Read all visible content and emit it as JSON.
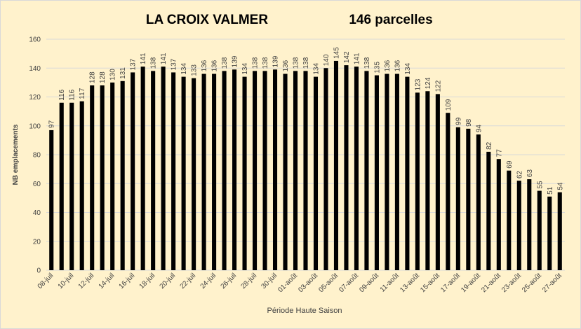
{
  "chart_data": {
    "type": "bar",
    "title": "LA CROIX VALMER",
    "subtitle": "146 parcelles",
    "x_label": "Période Haute Saison",
    "y_label": "NB emplacements",
    "categories": [
      "08-juil",
      null,
      "10-juil",
      null,
      "12-juil",
      null,
      "14-juil",
      null,
      "16-juil",
      null,
      "18-juil",
      null,
      "20-juil",
      null,
      "22-juil",
      null,
      "24-juil",
      null,
      "26-juil",
      null,
      "28-juil",
      null,
      "30-juil",
      null,
      "01-août",
      null,
      "03-août",
      null,
      "05-août",
      null,
      "07-août",
      null,
      "09-août",
      null,
      "11-août",
      null,
      "13-août",
      null,
      "15-août",
      null,
      "17-août",
      null,
      "19-août",
      null,
      "21-août",
      null,
      "23-août",
      null,
      "25-août",
      null,
      "27-août"
    ],
    "values": [
      97,
      116,
      116,
      117,
      128,
      128,
      130,
      131,
      137,
      141,
      138,
      141,
      137,
      134,
      133,
      136,
      136,
      138,
      139,
      134,
      138,
      138,
      139,
      136,
      138,
      138,
      134,
      140,
      145,
      142,
      141,
      138,
      135,
      136,
      136,
      134,
      123,
      124,
      122,
      109,
      99,
      98,
      94,
      82,
      77,
      69,
      62,
      63,
      55,
      51,
      54
    ],
    "color": "#000000",
    "ylim": [
      0,
      160
    ],
    "yticks": [
      0,
      20,
      40,
      60,
      80,
      100,
      120,
      140,
      160
    ],
    "grid": true
  }
}
